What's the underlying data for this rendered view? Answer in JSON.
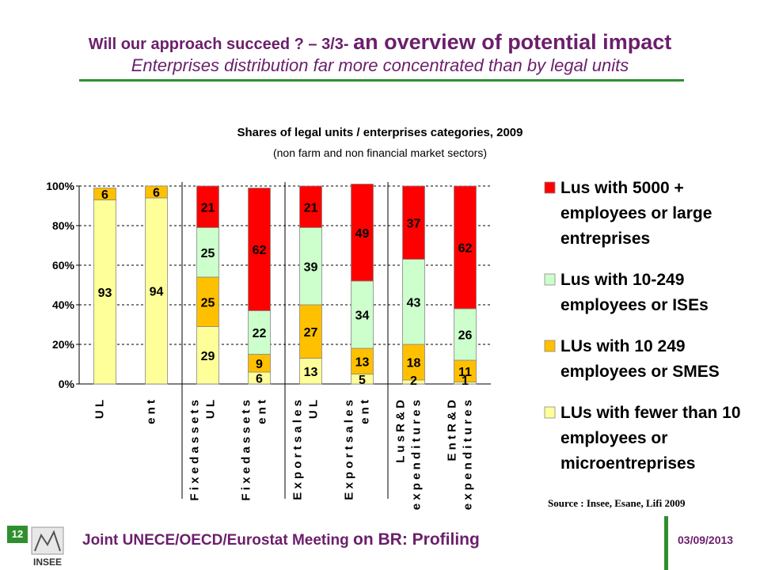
{
  "header": {
    "line1_small": "Will our approach succeed ? – 3/3- ",
    "line1_big": "an overview of potential impact",
    "line2": "Enterprises distribution far more concentrated than by legal units"
  },
  "chart_data": {
    "type": "bar",
    "stacked": true,
    "title": "Shares of legal units / enterprises categories, 2009",
    "subtitle": "(non farm and non financial market sectors)",
    "y_ticks": [
      "0%",
      "20%",
      "40%",
      "60%",
      "80%",
      "100%"
    ],
    "ylim": [
      0,
      100
    ],
    "grid": "dashed horizontal",
    "legend_placement": "right",
    "categories": [
      [
        "U L"
      ],
      [
        "e n t"
      ],
      [
        "F i x e d  a s s e t s",
        "U L"
      ],
      [
        "F i x e d  a s s e t s",
        "e n t"
      ],
      [
        "E x p o r t  s a l e s",
        "U L"
      ],
      [
        "E x p o r t  s a l e s",
        "e n t"
      ],
      [
        "L u s  R & D",
        "e x p e n d i t u r e s"
      ],
      [
        "E n t  R & D",
        "e x p e n d i t u r e s"
      ]
    ],
    "series": [
      {
        "name": "LUs with fewer than 10 employees or microentreprises",
        "color": "#ffff99",
        "values": [
          93,
          94,
          29,
          6,
          13,
          5,
          2,
          1
        ]
      },
      {
        "name": "LUs with 10 249 employees or SMES",
        "color": "#ffc000",
        "values": [
          6,
          6,
          25,
          9,
          27,
          13,
          18,
          11
        ]
      },
      {
        "name": "Lus with 10-249 employees or ISEs",
        "color": "#ccffcc",
        "values": [
          0,
          0,
          25,
          22,
          39,
          34,
          43,
          26
        ]
      },
      {
        "name": "Lus with 5000 + employees or large entreprises",
        "color": "#ff0000",
        "values": [
          0,
          0,
          21,
          62,
          21,
          49,
          37,
          62
        ]
      }
    ],
    "labels": [
      [
        "93",
        "6",
        "",
        ""
      ],
      [
        "94",
        "6",
        "",
        ""
      ],
      [
        "29",
        "25",
        "25",
        "21"
      ],
      [
        "6",
        "9",
        "22",
        "62"
      ],
      [
        "13",
        "27",
        "39",
        "21"
      ],
      [
        "5",
        "13",
        "34",
        "49"
      ],
      [
        "2",
        "18",
        "43",
        "37"
      ],
      [
        "1",
        "11",
        "26",
        "62"
      ]
    ],
    "legend": [
      {
        "lines": [
          "Lus with 5000 +",
          "employees or large",
          "entreprises"
        ],
        "color": "#ff0000"
      },
      {
        "lines": [
          "Lus with 10-249",
          "employees or ISEs"
        ],
        "color": "#ccffcc"
      },
      {
        "lines": [
          "LUs with 10  249",
          "employees or SMES"
        ],
        "color": "#ffc000"
      },
      {
        "lines": [
          "LUs with fewer than 10",
          "employees or",
          "microentreprises"
        ],
        "color": "#ffff99"
      }
    ],
    "source": "Source : Insee, Esane, Lifi 2009"
  },
  "footer": {
    "slide_number": "12",
    "text_prefix": "Joint UNECE/OECD/Eurostat Meeting ",
    "text_suffix": "on BR: Profiling",
    "date": "03/09/2013",
    "logo_text": "INSEE"
  }
}
